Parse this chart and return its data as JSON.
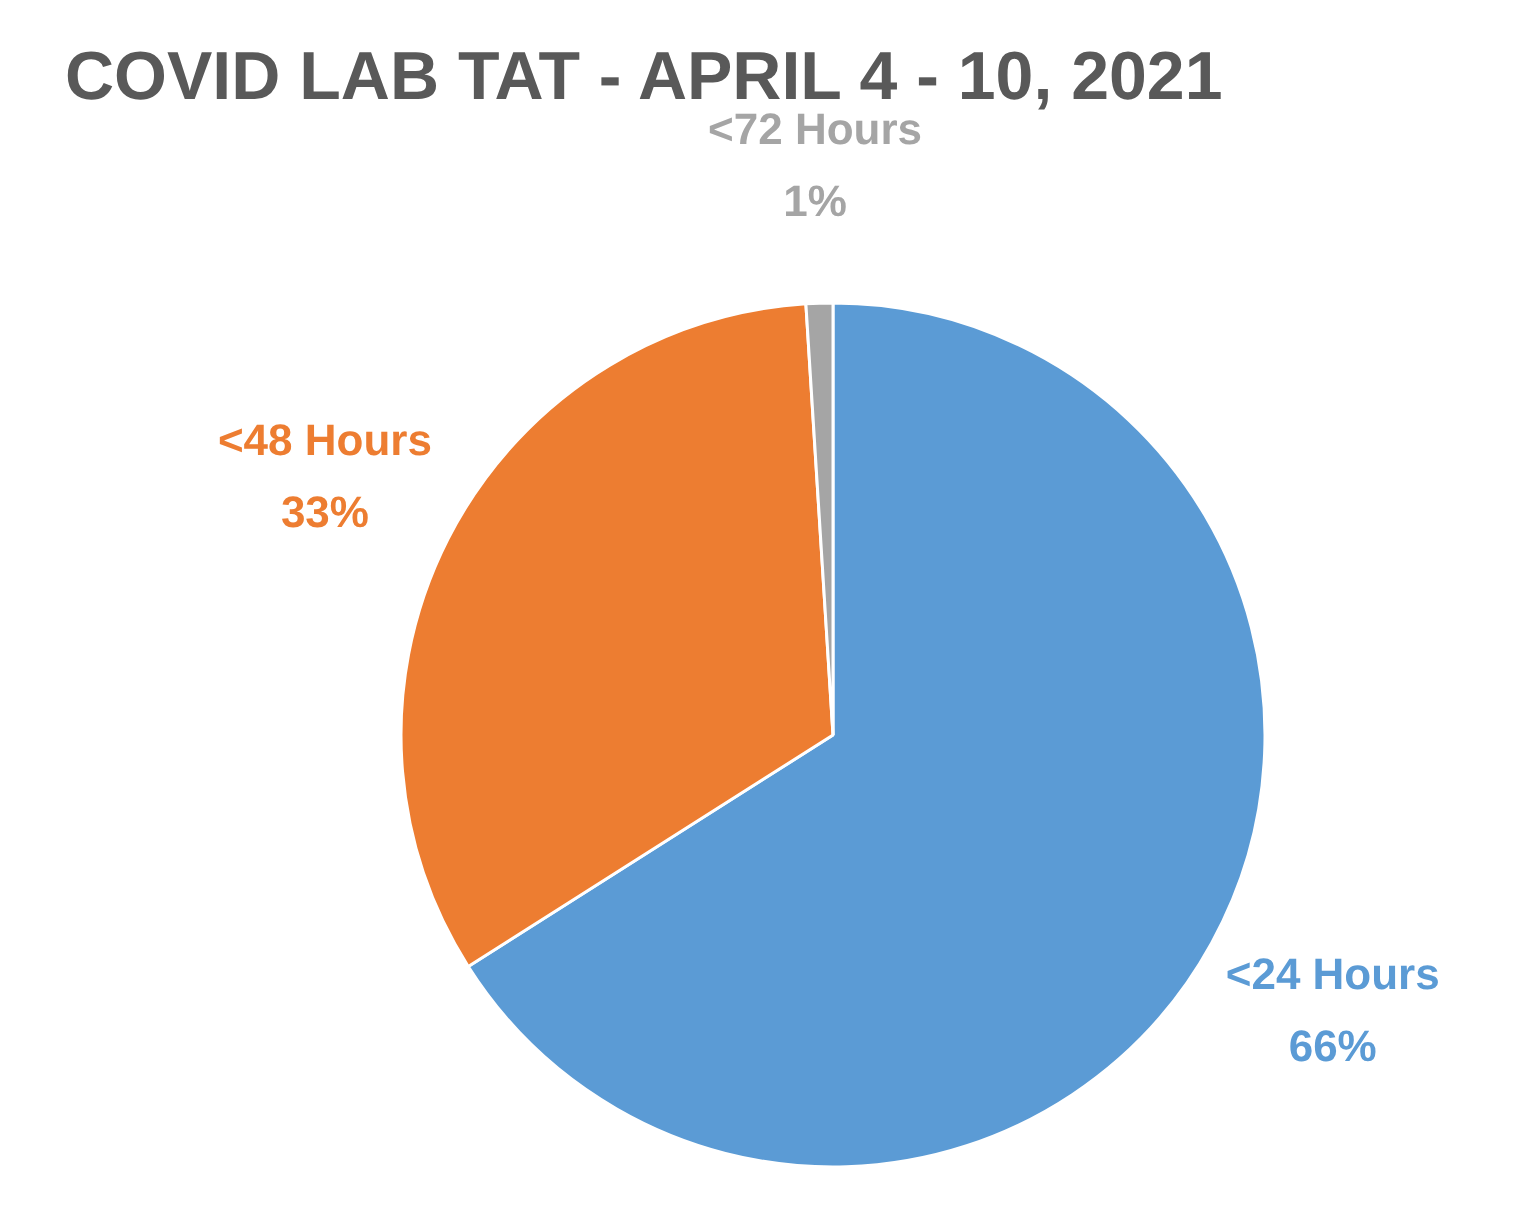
{
  "chart_data": {
    "type": "pie",
    "title": "COVID LAB TAT - APRIL 4 - 10, 2021",
    "categories": [
      "<24 Hours",
      "<48 Hours",
      "<72 Hours"
    ],
    "values": [
      66,
      33,
      1
    ],
    "colors": [
      "#5b9bd5",
      "#ed7d31",
      "#a5a5a5"
    ],
    "value_labels": [
      "66%",
      "33%",
      "1%"
    ]
  }
}
